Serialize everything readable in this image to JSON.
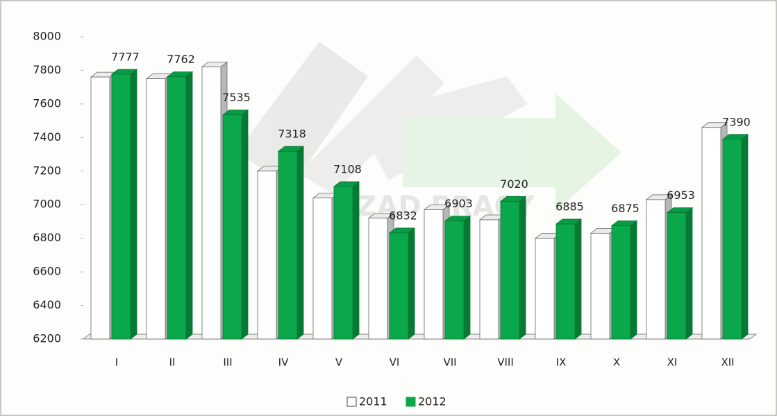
{
  "chart_data": {
    "type": "bar3d",
    "watermark": "URZĄD PRACY",
    "categories": [
      "I",
      "II",
      "III",
      "IV",
      "V",
      "VI",
      "VII",
      "VIII",
      "IX",
      "X",
      "XI",
      "XII"
    ],
    "series": [
      {
        "name": "2011",
        "color": "#ffffff",
        "values": [
          7760,
          7750,
          7820,
          7200,
          7040,
          6920,
          6970,
          6910,
          6800,
          6830,
          7030,
          7460
        ],
        "show_labels": false
      },
      {
        "name": "2012",
        "color": "#0aa84a",
        "values": [
          7777,
          7762,
          7535,
          7318,
          7108,
          6832,
          6903,
          7020,
          6885,
          6875,
          6953,
          7390
        ],
        "show_labels": true
      }
    ],
    "ylim": [
      6200,
      8000
    ],
    "yticks": [
      6200,
      6400,
      6600,
      6800,
      7000,
      7200,
      7400,
      7600,
      7800,
      8000
    ],
    "legend": "bottom"
  }
}
